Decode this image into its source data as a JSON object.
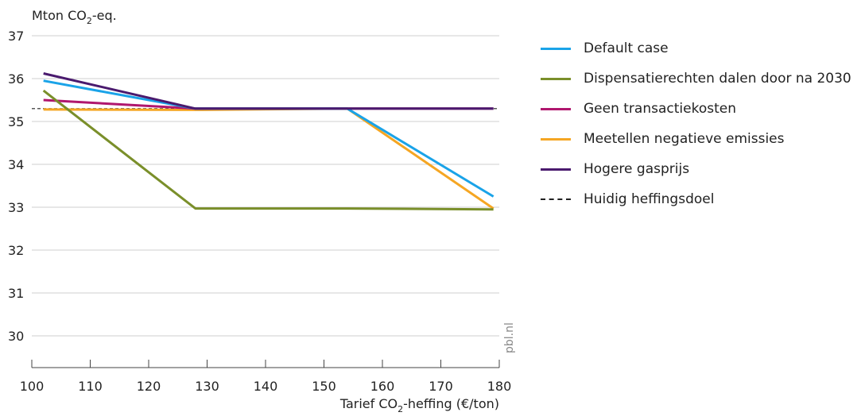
{
  "chart_data": {
    "type": "line",
    "ylabel": "Mton CO2-eq.",
    "xlabel": "Tarief CO2-heffing (€/ton)",
    "watermark": "pbl.nl",
    "xlim": [
      100,
      180
    ],
    "ylim": [
      29.5,
      37
    ],
    "x_ticks": [
      100,
      110,
      120,
      130,
      140,
      150,
      160,
      170,
      180
    ],
    "y_ticks": [
      30,
      31,
      32,
      33,
      34,
      35,
      36,
      37
    ],
    "grid": "horizontal",
    "legend_position": "right",
    "series": [
      {
        "name": "Default case",
        "color": "#1aa3e8",
        "x": [
          102,
          128,
          154,
          179
        ],
        "y": [
          35.95,
          35.3,
          35.3,
          33.25
        ]
      },
      {
        "name": "Dispensatierechten dalen door na 2030",
        "color": "#7a8f2a",
        "x": [
          102,
          128,
          154,
          179
        ],
        "y": [
          35.72,
          32.97,
          32.97,
          32.95
        ]
      },
      {
        "name": "Geen transactiekosten",
        "color": "#b0176e",
        "x": [
          102,
          128,
          154,
          179
        ],
        "y": [
          35.5,
          35.3,
          35.3,
          35.3
        ]
      },
      {
        "name": "Meetellen negatieve emissies",
        "color": "#f5a623",
        "x": [
          102,
          128,
          154,
          179
        ],
        "y": [
          35.28,
          35.27,
          35.3,
          32.97
        ]
      },
      {
        "name": "Hogere gasprijs",
        "color": "#4a1a6e",
        "x": [
          102,
          128,
          154,
          179
        ],
        "y": [
          36.12,
          35.3,
          35.3,
          35.3
        ]
      },
      {
        "name": "Huidig heffingsdoel",
        "color": "#222222",
        "dashed": true,
        "x": [
          100,
          180
        ],
        "y": [
          35.3,
          35.3
        ]
      }
    ]
  }
}
